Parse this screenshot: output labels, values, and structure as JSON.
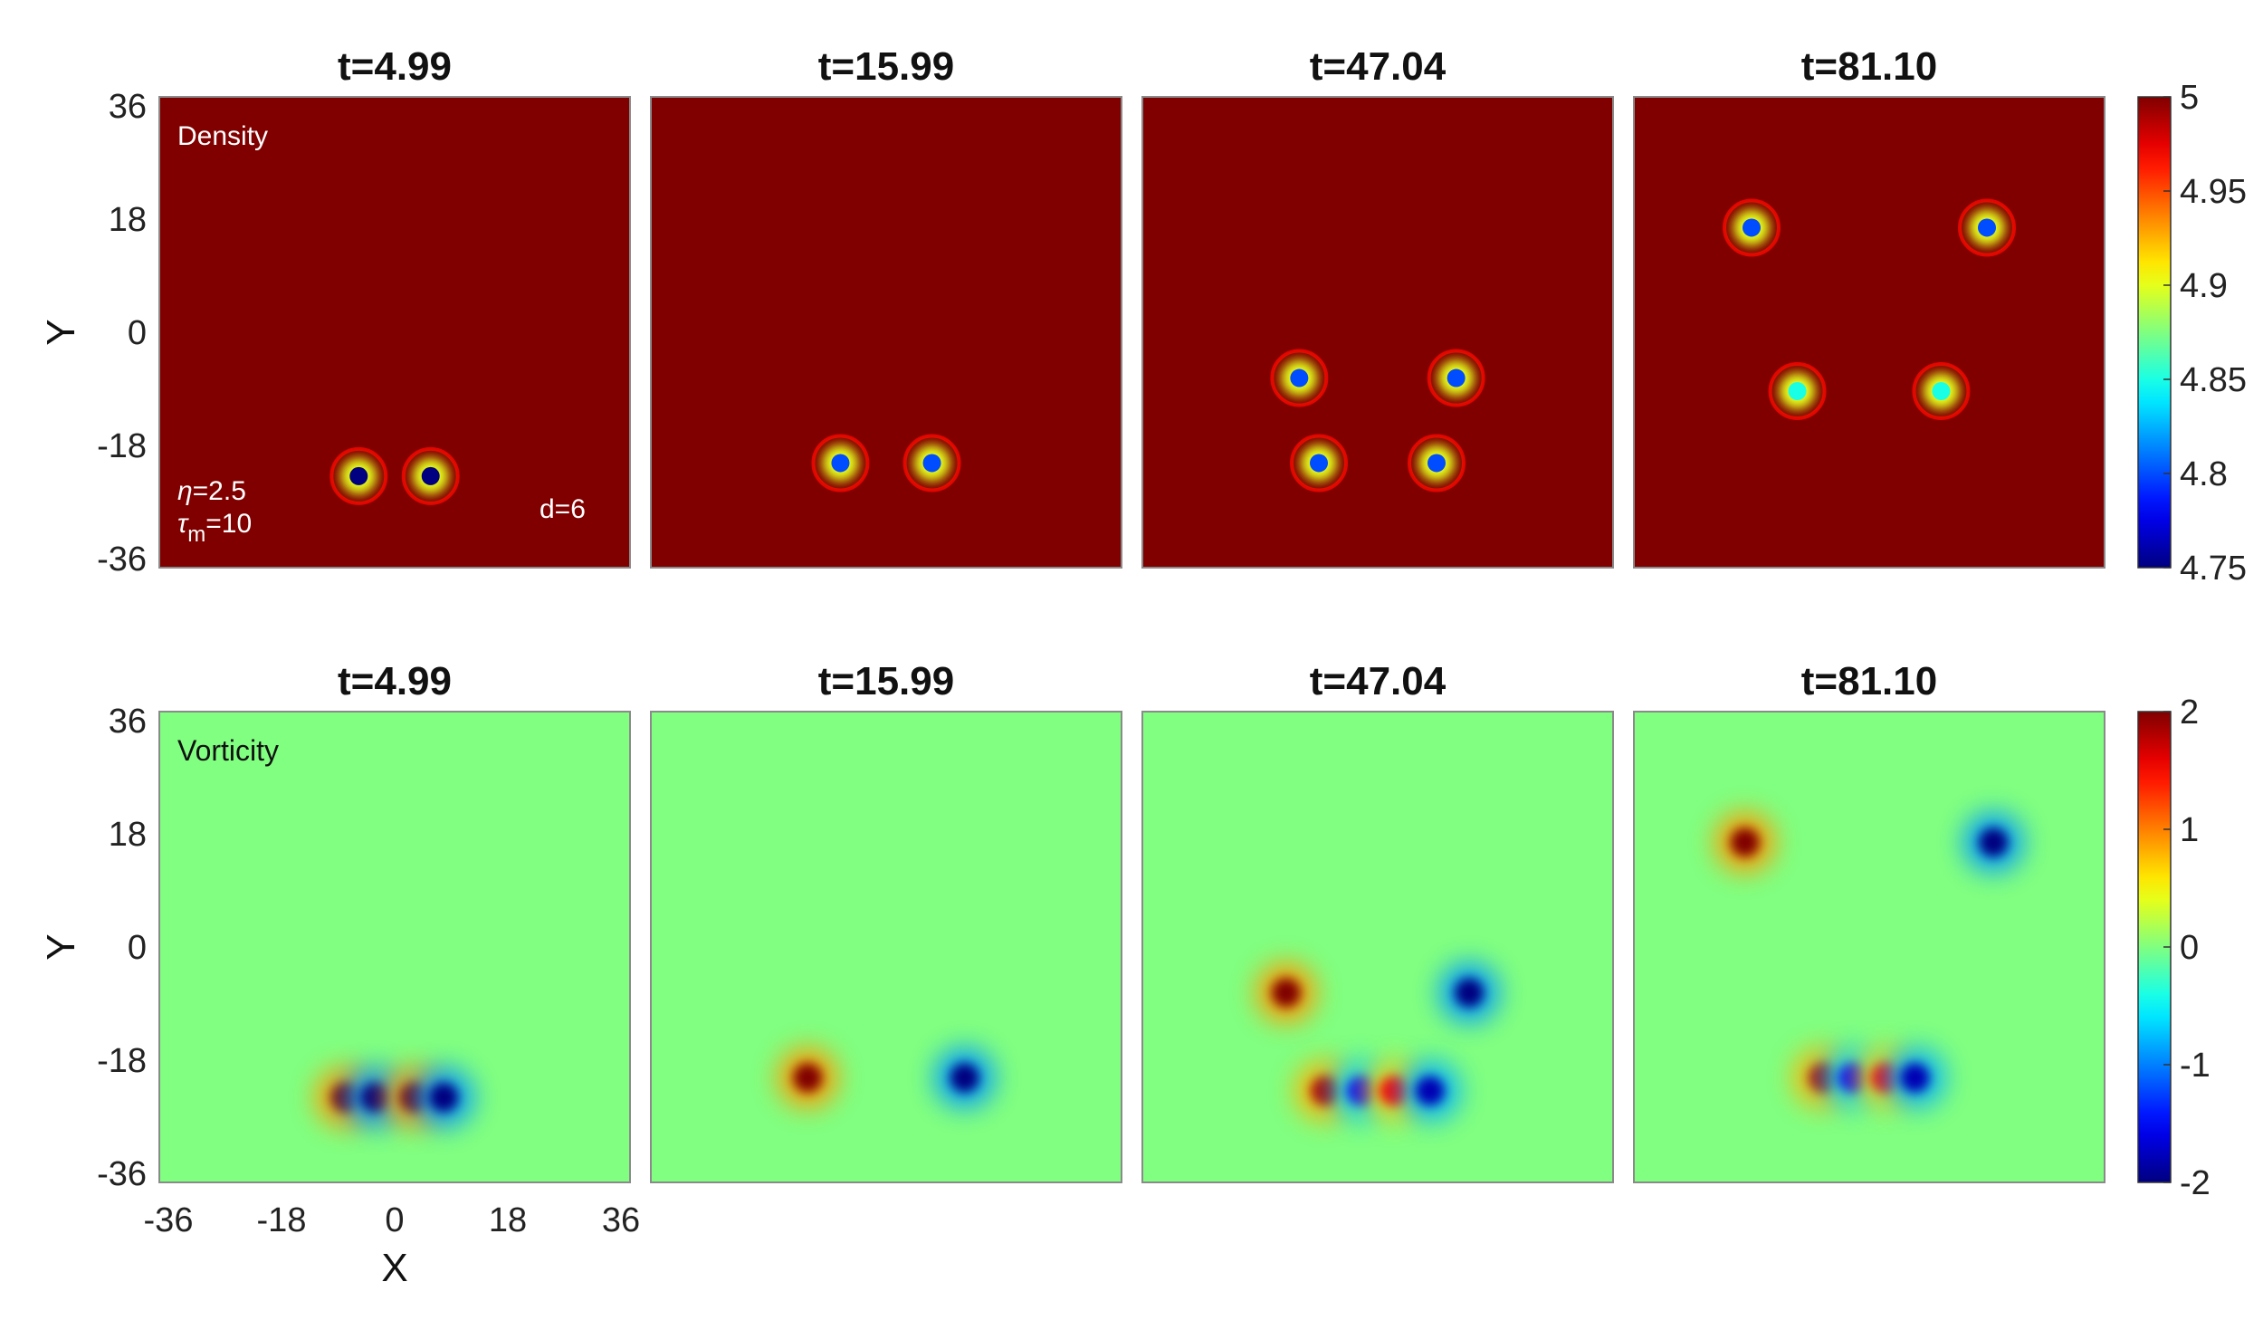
{
  "chart_data": {
    "type": "heatmap",
    "panels": [
      {
        "row": "density",
        "panel_label": "Density",
        "colorbar": {
          "min": 4.75,
          "max": 5,
          "ticks": [
            "5",
            "4.95",
            "4.9",
            "4.85",
            "4.8",
            "4.75"
          ]
        },
        "background_value": 5,
        "annotations": {
          "eta": "=2.5",
          "tau": "=10",
          "tau_sub": "m",
          "eta_symbol": "η",
          "tau_symbol": "τ",
          "d": "d=6"
        },
        "frames": [
          {
            "title": "t=4.99",
            "features": [
              {
                "x": -5.5,
                "y": -22,
                "v": 4.75
              },
              {
                "x": 5.5,
                "y": -22,
                "v": 4.75
              }
            ]
          },
          {
            "title": "t=15.99",
            "features": [
              {
                "x": -7,
                "y": -20,
                "v": 4.8
              },
              {
                "x": 7,
                "y": -20,
                "v": 4.8
              }
            ]
          },
          {
            "title": "t=47.04",
            "features": [
              {
                "x": -12,
                "y": -7,
                "v": 4.8
              },
              {
                "x": 12,
                "y": -7,
                "v": 4.8
              },
              {
                "x": -9,
                "y": -20,
                "v": 4.8
              },
              {
                "x": 9,
                "y": -20,
                "v": 4.8
              }
            ]
          },
          {
            "title": "t=81.10",
            "features": [
              {
                "x": -18,
                "y": 16,
                "v": 4.8
              },
              {
                "x": 18,
                "y": 16,
                "v": 4.8
              },
              {
                "x": -11,
                "y": -9,
                "v": 4.85
              },
              {
                "x": 11,
                "y": -9,
                "v": 4.85
              }
            ]
          }
        ]
      },
      {
        "row": "vorticity",
        "panel_label": "Vorticity",
        "colorbar": {
          "min": -2,
          "max": 2,
          "ticks": [
            "2",
            "1",
            "0",
            "-1",
            "-2"
          ]
        },
        "background_value": 0,
        "frames": [
          {
            "title": "t=4.99",
            "features": [
              {
                "x": -7.5,
                "y": -23,
                "v": 2
              },
              {
                "x": -3,
                "y": -23,
                "v": -2
              },
              {
                "x": 3,
                "y": -23,
                "v": 2
              },
              {
                "x": 7.5,
                "y": -23,
                "v": -2
              }
            ]
          },
          {
            "title": "t=15.99",
            "features": [
              {
                "x": -12,
                "y": -20,
                "v": 2
              },
              {
                "x": 12,
                "y": -20,
                "v": -2
              }
            ]
          },
          {
            "title": "t=47.04",
            "features": [
              {
                "x": -14,
                "y": -7,
                "v": 2
              },
              {
                "x": 14,
                "y": -7,
                "v": -2
              },
              {
                "x": -8,
                "y": -22,
                "v": 1.8
              },
              {
                "x": -2.5,
                "y": -22,
                "v": -1.5
              },
              {
                "x": 2.5,
                "y": -22,
                "v": 1.5
              },
              {
                "x": 8,
                "y": -22,
                "v": -1.8
              }
            ]
          },
          {
            "title": "t=81.10",
            "features": [
              {
                "x": -19,
                "y": 16,
                "v": 2
              },
              {
                "x": 19,
                "y": 16,
                "v": -2
              },
              {
                "x": -7,
                "y": -20,
                "v": 1.8
              },
              {
                "x": -2.5,
                "y": -20,
                "v": -1.5
              },
              {
                "x": 2.5,
                "y": -20,
                "v": 1.5
              },
              {
                "x": 7,
                "y": -20,
                "v": -1.8
              }
            ]
          }
        ]
      }
    ],
    "x_ticks": [
      "-36",
      "-18",
      "0",
      "18",
      "36"
    ],
    "y_ticks": [
      "36",
      "18",
      "0",
      "-18",
      "-36"
    ],
    "xlabel": "X",
    "ylabel": "Y",
    "xlim": [
      -36,
      36
    ],
    "ylim": [
      -36,
      36
    ],
    "colormap": "jet"
  }
}
